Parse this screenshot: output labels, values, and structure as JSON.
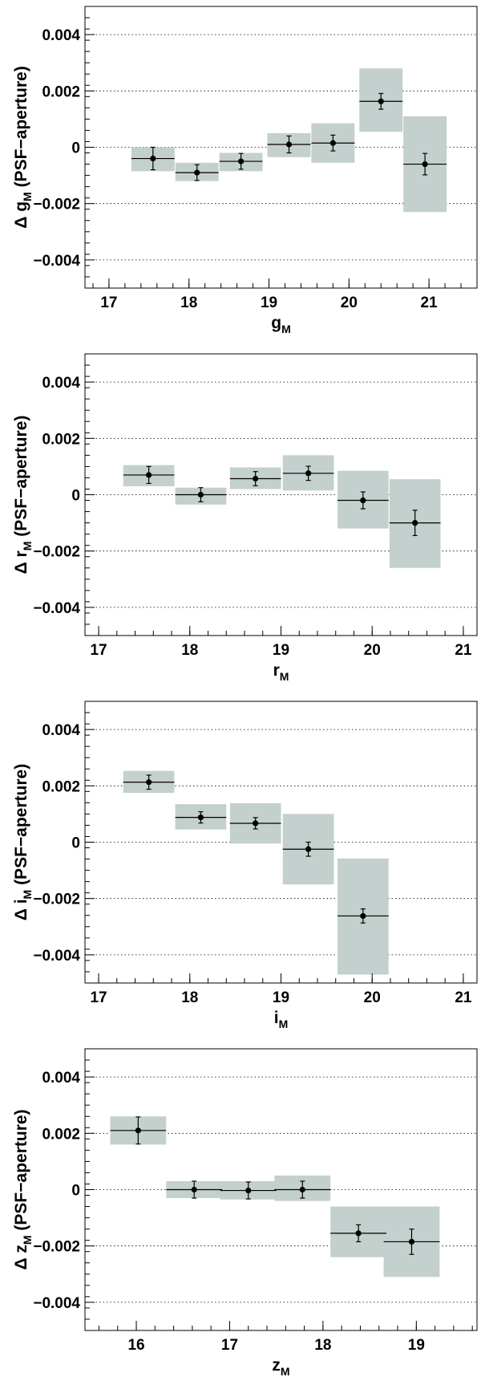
{
  "chart_data": [
    {
      "type": "scatter",
      "xlabel": {
        "base": "g",
        "sub": "M"
      },
      "ylabel": {
        "prefix": "Δ ",
        "base": "g",
        "sub": "M",
        "suffix": " (PSF−aperture)"
      },
      "xlim": [
        16.7,
        21.6
      ],
      "ylim": [
        -0.005,
        0.005
      ],
      "xticks": [
        17,
        18,
        19,
        20,
        21
      ],
      "yticks": [
        -0.004,
        -0.002,
        0,
        0.002,
        0.004
      ],
      "ytick_labels": [
        "−0.004",
        "−0.002",
        "0",
        "0.002",
        "0.004"
      ],
      "grid": "horizontal dotted",
      "band_color": "#c3d0cd",
      "points": [
        {
          "x": 17.55,
          "y": -0.0004,
          "xerr": 0.27,
          "yerr": 0.0004,
          "band": [
            -0.00085,
            0.0
          ]
        },
        {
          "x": 18.1,
          "y": -0.0009,
          "xerr": 0.27,
          "yerr": 0.00028,
          "band": [
            -0.0012,
            -0.00055
          ]
        },
        {
          "x": 18.65,
          "y": -0.0005,
          "xerr": 0.27,
          "yerr": 0.00028,
          "band": [
            -0.00085,
            -0.0002
          ]
        },
        {
          "x": 19.25,
          "y": 0.0001,
          "xerr": 0.27,
          "yerr": 0.0003,
          "band": [
            -0.00035,
            0.0005
          ]
        },
        {
          "x": 19.8,
          "y": 0.00015,
          "xerr": 0.27,
          "yerr": 0.00028,
          "band": [
            -0.00055,
            0.00085
          ]
        },
        {
          "x": 20.4,
          "y": 0.00163,
          "xerr": 0.27,
          "yerr": 0.00028,
          "band": [
            0.00055,
            0.0028
          ]
        },
        {
          "x": 20.95,
          "y": -0.0006,
          "xerr": 0.27,
          "yerr": 0.00038,
          "band": [
            -0.0023,
            0.0011
          ]
        }
      ]
    },
    {
      "type": "scatter",
      "xlabel": {
        "base": "r",
        "sub": "M"
      },
      "ylabel": {
        "prefix": "Δ ",
        "base": "r",
        "sub": "M",
        "suffix": " (PSF−aperture)"
      },
      "xlim": [
        16.85,
        21.15
      ],
      "ylim": [
        -0.005,
        0.005
      ],
      "xticks": [
        17,
        18,
        19,
        20,
        21
      ],
      "yticks": [
        -0.004,
        -0.002,
        0,
        0.002,
        0.004
      ],
      "ytick_labels": [
        "−0.004",
        "−0.002",
        "0",
        "0.002",
        "0.004"
      ],
      "grid": "horizontal dotted",
      "band_color": "#c3d0cd",
      "points": [
        {
          "x": 17.55,
          "y": 0.0007,
          "xerr": 0.28,
          "yerr": 0.0003,
          "band": [
            0.0003,
            0.00105
          ]
        },
        {
          "x": 18.12,
          "y": 0.0,
          "xerr": 0.28,
          "yerr": 0.00025,
          "band": [
            -0.00035,
            0.00025
          ]
        },
        {
          "x": 18.72,
          "y": 0.00057,
          "xerr": 0.28,
          "yerr": 0.00025,
          "band": [
            0.0002,
            0.00097
          ]
        },
        {
          "x": 19.3,
          "y": 0.00076,
          "xerr": 0.28,
          "yerr": 0.00025,
          "band": [
            0.00015,
            0.0014
          ]
        },
        {
          "x": 19.9,
          "y": -0.0002,
          "xerr": 0.28,
          "yerr": 0.0003,
          "band": [
            -0.0012,
            0.00085
          ]
        },
        {
          "x": 20.47,
          "y": -0.001,
          "xerr": 0.28,
          "yerr": 0.00045,
          "band": [
            -0.0026,
            0.00055
          ]
        }
      ]
    },
    {
      "type": "scatter",
      "xlabel": {
        "base": "i",
        "sub": "M"
      },
      "ylabel": {
        "prefix": "Δ ",
        "base": "i",
        "sub": "M",
        "suffix": " (PSF−aperture)"
      },
      "xlim": [
        16.85,
        21.15
      ],
      "ylim": [
        -0.005,
        0.005
      ],
      "xticks": [
        17,
        18,
        19,
        20,
        21
      ],
      "yticks": [
        -0.004,
        -0.002,
        0,
        0.002,
        0.004
      ],
      "ytick_labels": [
        "−0.004",
        "−0.002",
        "0",
        "0.002",
        "0.004"
      ],
      "grid": "horizontal dotted",
      "band_color": "#c3d0cd",
      "points": [
        {
          "x": 17.55,
          "y": 0.00213,
          "xerr": 0.28,
          "yerr": 0.00025,
          "band": [
            0.00175,
            0.00253
          ]
        },
        {
          "x": 18.12,
          "y": 0.00088,
          "xerr": 0.28,
          "yerr": 0.0002,
          "band": [
            0.00045,
            0.00135
          ]
        },
        {
          "x": 18.72,
          "y": 0.00067,
          "xerr": 0.28,
          "yerr": 0.0002,
          "band": [
            -5e-05,
            0.00138
          ]
        },
        {
          "x": 19.3,
          "y": -0.00025,
          "xerr": 0.28,
          "yerr": 0.00025,
          "band": [
            -0.0015,
            0.001
          ]
        },
        {
          "x": 19.9,
          "y": -0.00262,
          "xerr": 0.28,
          "yerr": 0.00025,
          "band": [
            -0.0047,
            -0.00058
          ]
        }
      ]
    },
    {
      "type": "scatter",
      "xlabel": {
        "base": "z",
        "sub": "M"
      },
      "ylabel": {
        "prefix": "Δ ",
        "base": "z",
        "sub": "M",
        "suffix": " (PSF−aperture)"
      },
      "xlim": [
        15.45,
        19.65
      ],
      "ylim": [
        -0.005,
        0.005
      ],
      "xticks": [
        16,
        17,
        18,
        19
      ],
      "yticks": [
        -0.004,
        -0.002,
        0,
        0.002,
        0.004
      ],
      "ytick_labels": [
        "−0.004",
        "−0.002",
        "0",
        "0.002",
        "0.004"
      ],
      "grid": "horizontal dotted",
      "band_color": "#c3d0cd",
      "points": [
        {
          "x": 16.02,
          "y": 0.0021,
          "xerr": 0.3,
          "yerr": 0.00048,
          "band": [
            0.0016,
            0.0026
          ]
        },
        {
          "x": 16.62,
          "y": 0.0,
          "xerr": 0.3,
          "yerr": 0.0003,
          "band": [
            -0.0003,
            0.0003
          ]
        },
        {
          "x": 17.2,
          "y": -3e-05,
          "xerr": 0.3,
          "yerr": 0.0003,
          "band": [
            -0.00035,
            0.0003
          ]
        },
        {
          "x": 17.78,
          "y": 0.0,
          "xerr": 0.3,
          "yerr": 0.0003,
          "band": [
            -0.0004,
            0.0005
          ]
        },
        {
          "x": 18.38,
          "y": -0.00155,
          "xerr": 0.3,
          "yerr": 0.0003,
          "band": [
            -0.0024,
            -0.0006
          ]
        },
        {
          "x": 18.95,
          "y": -0.00185,
          "xerr": 0.3,
          "yerr": 0.00045,
          "band": [
            -0.0031,
            -0.0006
          ]
        }
      ]
    }
  ]
}
